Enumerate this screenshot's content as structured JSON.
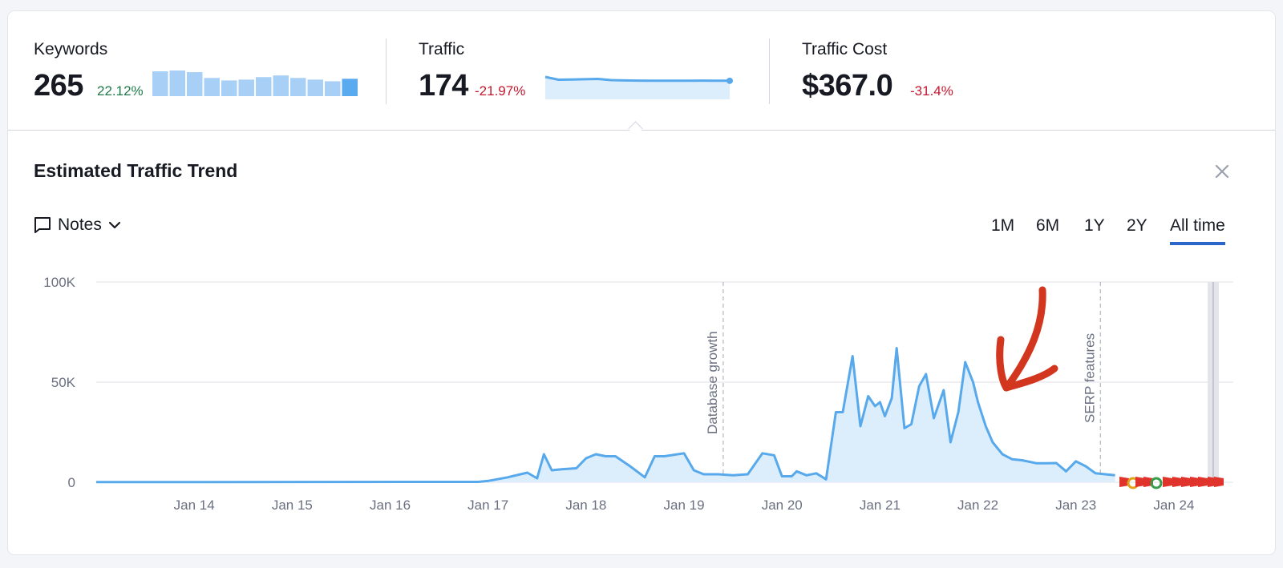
{
  "metrics": {
    "keywords": {
      "label": "Keywords",
      "value": "265",
      "change": "22.12%",
      "spark": [
        30,
        31,
        29,
        22,
        19,
        20,
        23,
        25,
        22,
        20,
        18,
        21
      ]
    },
    "traffic": {
      "label": "Traffic",
      "value": "174",
      "change": "-21.97%",
      "spark": [
        260,
        230,
        232,
        235,
        238,
        225,
        222,
        220,
        218,
        218,
        218,
        219,
        220,
        218,
        175
      ]
    },
    "traffic_cost": {
      "label": "Traffic Cost",
      "value": "$367.0",
      "change": "-31.4%"
    }
  },
  "panel": {
    "title": "Estimated Traffic Trend",
    "notes_label": "Notes",
    "close_icon": "close-icon",
    "ranges": [
      "1M",
      "6M",
      "1Y",
      "2Y",
      "All time"
    ],
    "active_range": "All time"
  },
  "colors": {
    "line": "#57a9ec",
    "area": "#dcedfc",
    "accent": "#2b66c8",
    "arrow": "#d2361e",
    "up": "#1f7a4a",
    "down": "#c4182f"
  },
  "chart_data": {
    "type": "area",
    "x_ticks": [
      "Jan 14",
      "Jan 15",
      "Jan 16",
      "Jan 17",
      "Jan 18",
      "Jan 19",
      "Jan 20",
      "Jan 21",
      "Jan 22",
      "Jan 23",
      "Jan 24"
    ],
    "y_ticks": [
      "100K",
      "50K",
      "0"
    ],
    "ylim": [
      0,
      100000
    ],
    "annotations": [
      {
        "label": "Database growth",
        "x": 2019.4
      },
      {
        "label": "SERP features",
        "x": 2023.25
      }
    ],
    "series": [
      {
        "x": [
          2013.0,
          2016.9,
          2017.0,
          2017.2,
          2017.4,
          2017.5,
          2017.57,
          2017.65,
          2017.75,
          2017.9,
          2018.0,
          2018.1,
          2018.2,
          2018.3,
          2018.45,
          2018.6,
          2018.7,
          2018.8,
          2019.0,
          2019.1,
          2019.2,
          2019.35,
          2019.5,
          2019.65,
          2019.8,
          2019.92,
          2020.0,
          2020.1,
          2020.15,
          2020.25,
          2020.35,
          2020.45,
          2020.55,
          2020.62,
          2020.72,
          2020.8,
          2020.88,
          2020.95,
          2021.0,
          2021.05,
          2021.12,
          2021.17,
          2021.25,
          2021.32,
          2021.4,
          2021.47,
          2021.55,
          2021.65,
          2021.72,
          2021.8,
          2021.87,
          2021.95,
          2022.0,
          2022.08,
          2022.15,
          2022.25,
          2022.35,
          2022.45,
          2022.6,
          2022.7,
          2022.8,
          2022.9,
          2023.0,
          2023.1,
          2023.2,
          2023.3,
          2023.4
        ],
        "y": [
          100,
          200,
          700,
          2500,
          4800,
          2000,
          14000,
          6000,
          6500,
          7000,
          12000,
          14000,
          13000,
          13000,
          8000,
          2500,
          13000,
          13000,
          14500,
          6000,
          4000,
          4000,
          3500,
          4000,
          14500,
          13500,
          3000,
          3000,
          5500,
          3500,
          4500,
          1500,
          35000,
          35000,
          63000,
          28000,
          43000,
          38000,
          40000,
          33000,
          42000,
          67000,
          27000,
          29000,
          48000,
          54000,
          32000,
          46000,
          20000,
          35000,
          60000,
          50000,
          40000,
          28000,
          20000,
          14000,
          11500,
          11000,
          9500,
          9500,
          9600,
          5500,
          10500,
          8000,
          4500,
          4000,
          3500
        ]
      }
    ]
  }
}
